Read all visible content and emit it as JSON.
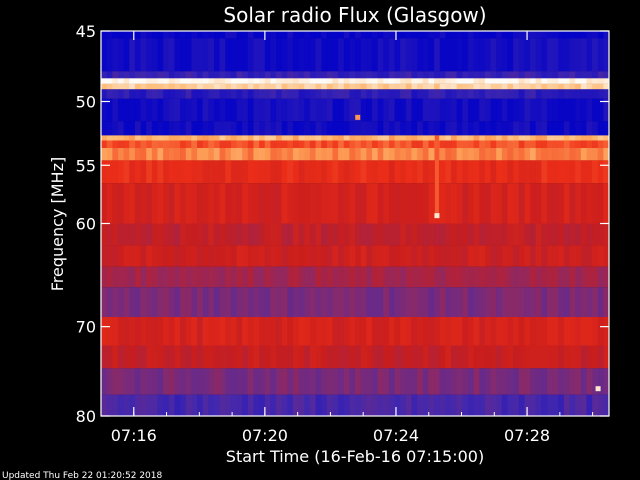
{
  "chart_data": {
    "type": "heatmap",
    "title": "Solar radio Flux (Glasgow)",
    "xlabel": "Start Time (16-Feb-16 07:15:00)",
    "ylabel": "Frequency [MHz]",
    "x_range": [
      "07:15:00",
      "07:30:30"
    ],
    "x_ticks": [
      "07:16",
      "07:20",
      "07:24",
      "07:28"
    ],
    "y_range": [
      45,
      80
    ],
    "y_scale": "log",
    "y_ticks": [
      45,
      50,
      55,
      60,
      70,
      80
    ],
    "grid": false,
    "colormap": [
      "#0000c8",
      "#4028b0",
      "#8a2a6a",
      "#c81e1e",
      "#f03018",
      "#ffb060",
      "#ffffff"
    ],
    "bands": [
      {
        "from": 45.0,
        "to": 45.5,
        "level": 0.02
      },
      {
        "from": 45.5,
        "to": 47.8,
        "level": 0.05
      },
      {
        "from": 47.8,
        "to": 48.3,
        "level": 0.14
      },
      {
        "from": 48.3,
        "to": 48.7,
        "level": 0.98
      },
      {
        "from": 48.7,
        "to": 49.1,
        "level": 0.9
      },
      {
        "from": 49.1,
        "to": 49.8,
        "level": 0.12
      },
      {
        "from": 49.8,
        "to": 51.5,
        "level": 0.05
      },
      {
        "from": 51.5,
        "to": 52.6,
        "level": 0.04
      },
      {
        "from": 52.6,
        "to": 53.0,
        "level": 0.85
      },
      {
        "from": 53.0,
        "to": 53.6,
        "level": 0.7
      },
      {
        "from": 53.6,
        "to": 54.6,
        "level": 0.78
      },
      {
        "from": 54.6,
        "to": 56.5,
        "level": 0.62
      },
      {
        "from": 56.5,
        "to": 60.0,
        "level": 0.55
      },
      {
        "from": 60.0,
        "to": 62.0,
        "level": 0.48
      },
      {
        "from": 62.0,
        "to": 64.0,
        "level": 0.52
      },
      {
        "from": 64.0,
        "to": 66.0,
        "level": 0.4
      },
      {
        "from": 66.0,
        "to": 69.0,
        "level": 0.3
      },
      {
        "from": 69.0,
        "to": 72.0,
        "level": 0.55
      },
      {
        "from": 72.0,
        "to": 74.5,
        "level": 0.5
      },
      {
        "from": 74.5,
        "to": 77.5,
        "level": 0.3
      },
      {
        "from": 77.5,
        "to": 80.0,
        "level": 0.18
      }
    ],
    "features": [
      {
        "type": "burst",
        "time": "07:25:15",
        "freq_range": [
          52.6,
          59.5
        ],
        "level": 0.72
      },
      {
        "type": "spot",
        "time": "07:22:50",
        "freq": 51.2,
        "level": 0.8
      },
      {
        "type": "spot",
        "time": "07:25:15",
        "freq": 59.3,
        "level": 0.95
      },
      {
        "type": "spot",
        "time": "07:30:10",
        "freq": 76.8,
        "level": 0.95
      }
    ]
  },
  "footer": {
    "updated_text": "Updated Thu Feb 22 01:20:52 2018"
  }
}
